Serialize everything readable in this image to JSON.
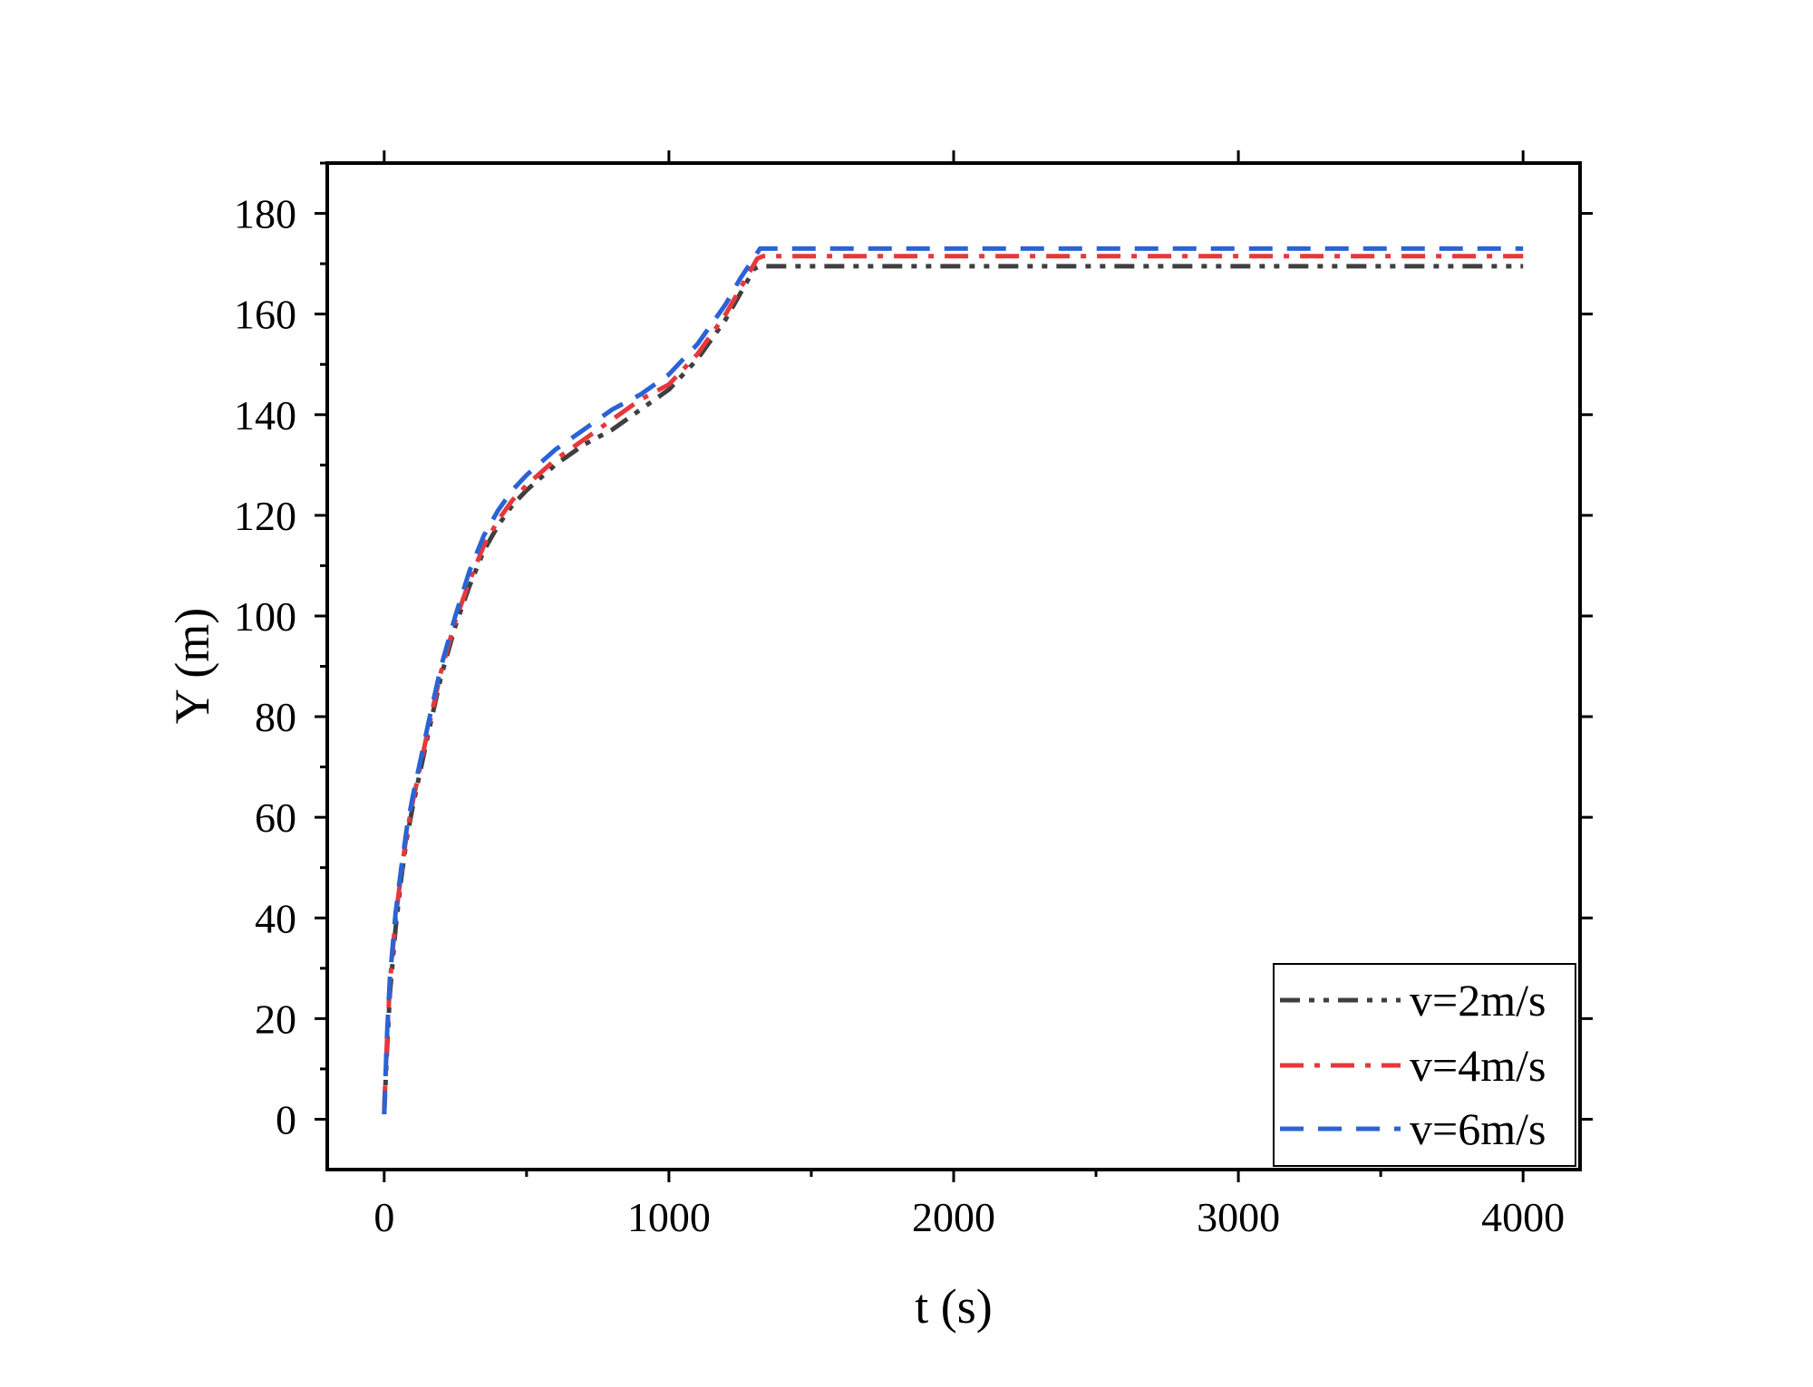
{
  "chart_data": {
    "type": "line",
    "xlabel": "t (s)",
    "ylabel": "Y (m)",
    "xlim": [
      -200,
      4200
    ],
    "ylim": [
      -10,
      190
    ],
    "xticks": [
      0,
      1000,
      2000,
      3000,
      4000
    ],
    "xtick_labels": [
      "0",
      "1000",
      "2000",
      "3000",
      "4000"
    ],
    "yticks": [
      0,
      20,
      40,
      60,
      80,
      100,
      120,
      140,
      160,
      180
    ],
    "ytick_labels": [
      "0",
      "20",
      "40",
      "60",
      "80",
      "100",
      "120",
      "140",
      "160",
      "180"
    ],
    "grid": false,
    "legend_position": "bottom-right",
    "series": [
      {
        "name": "v=2m/s",
        "color": "#3f3f3f",
        "dash": "dash-dot-dot",
        "x": [
          0,
          10,
          20,
          40,
          60,
          80,
          100,
          130,
          160,
          200,
          250,
          300,
          350,
          400,
          450,
          500,
          600,
          700,
          800,
          900,
          1000,
          1050,
          1100,
          1150,
          1200,
          1250,
          1300,
          1320,
          4000
        ],
        "y": [
          1,
          14,
          25,
          38,
          48,
          56,
          62,
          70,
          78,
          88,
          98,
          106,
          113,
          118,
          122,
          125,
          130,
          134,
          137,
          141,
          145,
          148,
          151,
          155,
          159,
          164,
          169,
          169.5,
          169.5
        ]
      },
      {
        "name": "v=4m/s",
        "color": "#e8373a",
        "dash": "dash-dot",
        "x": [
          0,
          10,
          20,
          40,
          60,
          80,
          100,
          130,
          160,
          200,
          250,
          300,
          350,
          400,
          450,
          500,
          600,
          700,
          800,
          900,
          1000,
          1050,
          1100,
          1150,
          1200,
          1250,
          1310,
          1330,
          4000
        ],
        "y": [
          2,
          16,
          27,
          40,
          49,
          57,
          63,
          71,
          79,
          89,
          99,
          107,
          114,
          119,
          123,
          126,
          131,
          135,
          139,
          143,
          146,
          149,
          152,
          156,
          160,
          165,
          171,
          171.5,
          171.5
        ]
      },
      {
        "name": "v=6m/s",
        "color": "#2a63d6",
        "dash": "dash",
        "x": [
          0,
          10,
          20,
          40,
          60,
          80,
          100,
          130,
          160,
          200,
          250,
          300,
          350,
          400,
          450,
          500,
          600,
          700,
          800,
          900,
          1000,
          1050,
          1100,
          1150,
          1200,
          1250,
          1320,
          1340,
          4000
        ],
        "y": [
          1,
          17,
          28,
          41,
          50,
          58,
          64,
          72,
          80,
          90,
          100,
          109,
          116,
          121,
          125,
          128,
          133,
          137,
          141,
          144,
          148,
          151,
          154,
          158,
          162,
          167,
          173,
          173,
          173
        ]
      }
    ]
  }
}
